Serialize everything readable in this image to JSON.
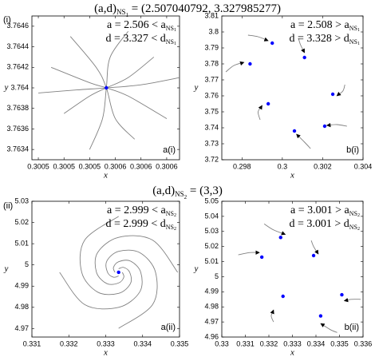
{
  "rows": [
    {
      "label": "(i)",
      "title": {
        "main": "(a,d)",
        "sub": "NS",
        "subsub": "1",
        "rest": " = (2.507040792, 3.327985277)"
      }
    },
    {
      "label": "(ii)",
      "title": {
        "main": "(a,d)",
        "sub": "NS",
        "subsub": "2",
        "rest": " = (3,3)"
      }
    }
  ],
  "chart_data": [
    {
      "type": "line",
      "panel_label": "a(i)",
      "xlabel": "x",
      "ylabel": "y",
      "annotations": [
        {
          "text": "a = 2.506 < a",
          "sub": "NS",
          "subsub": "1"
        },
        {
          "text": "d = 3.327 < d",
          "sub": "NS",
          "subsub": "1"
        }
      ],
      "xlim": [
        0.300495,
        0.30061
      ],
      "ylim": [
        3.7633,
        3.7647
      ],
      "xticks": [
        {
          "value": 0.3005,
          "label": "0.3005"
        },
        {
          "value": 0.30052,
          "label": "0.3005"
        },
        {
          "value": 0.30054,
          "label": "0.3005"
        },
        {
          "value": 0.30056,
          "label": "0.3006"
        },
        {
          "value": 0.30058,
          "label": "0.3006"
        },
        {
          "value": 0.3006,
          "label": "0.3006"
        }
      ],
      "yticks": [
        3.7634,
        3.7636,
        3.7638,
        {
          "value": 3.764,
          "label": "3.764"
        },
        3.7642,
        3.7644,
        3.7646
      ],
      "arrows": false,
      "series": [
        {
          "color": "#808080",
          "x": [
            0.300525,
            0.300545,
            0.300553,
            0.30056,
            0.300575
          ],
          "y": [
            3.7645,
            3.7642,
            3.764,
            3.7637,
            3.7635
          ]
        },
        {
          "color": "#808080",
          "x": [
            0.30051,
            0.30054,
            0.300553,
            0.30057,
            0.3006
          ],
          "y": [
            3.7642,
            3.76405,
            3.764,
            3.76392,
            3.7637
          ]
        },
        {
          "color": "#808080",
          "x": [
            0.30052,
            0.30054,
            0.300553,
            0.30057,
            0.30059
          ],
          "y": [
            3.76375,
            3.76392,
            3.764,
            3.7641,
            3.7643
          ]
        },
        {
          "color": "#808080",
          "x": [
            0.30054,
            0.30055,
            0.300553,
            0.300556,
            0.30057
          ],
          "y": [
            3.7634,
            3.7637,
            3.764,
            3.7643,
            3.76455
          ]
        },
        {
          "color": "#808080",
          "x": [
            0.3005,
            0.30053,
            0.300553,
            0.30058,
            0.30061
          ],
          "y": [
            3.76395,
            3.76398,
            3.764,
            3.76403,
            3.7641
          ]
        }
      ],
      "points": {
        "color": "#0000ff",
        "x": [
          0.300553
        ],
        "y": [
          3.764
        ]
      }
    },
    {
      "type": "line",
      "panel_label": "b(i)",
      "xlabel": "x",
      "ylabel": "y",
      "annotations": [
        {
          "text": "a = 2.508 > a",
          "sub": "NS",
          "subsub": "1"
        },
        {
          "text": "d = 3.328 > d",
          "sub": "NS",
          "subsub": "1"
        }
      ],
      "xlim": [
        0.297,
        0.304
      ],
      "ylim": [
        3.72,
        3.81
      ],
      "xticks": [
        0.298,
        0.3,
        0.302,
        0.304
      ],
      "yticks": [
        3.72,
        3.73,
        3.74,
        3.75,
        3.76,
        3.77,
        3.78,
        3.79,
        3.8,
        3.81
      ],
      "arrows": true,
      "series": [
        {
          "color": "#808080",
          "x": [
            0.2983,
            0.2988,
            0.2993
          ],
          "y": [
            3.798,
            3.797,
            3.7945
          ]
        },
        {
          "color": "#808080",
          "x": [
            0.3008,
            0.3009,
            0.3011
          ],
          "y": [
            3.796,
            3.792,
            3.787
          ]
        },
        {
          "color": "#808080",
          "x": [
            0.2972,
            0.2976,
            0.2981
          ],
          "y": [
            3.775,
            3.779,
            3.781
          ]
        },
        {
          "color": "#808080",
          "x": [
            0.3031,
            0.303,
            0.3027
          ],
          "y": [
            3.767,
            3.763,
            3.76
          ]
        },
        {
          "color": "#808080",
          "x": [
            0.2989,
            0.2988,
            0.299
          ],
          "y": [
            3.745,
            3.75,
            3.754
          ]
        },
        {
          "color": "#808080",
          "x": [
            0.3014,
            0.3011,
            0.3007
          ],
          "y": [
            3.727,
            3.731,
            3.736
          ]
        },
        {
          "color": "#808080",
          "x": [
            0.3032,
            0.3027,
            0.3022
          ],
          "y": [
            3.741,
            3.742,
            3.7415
          ]
        }
      ],
      "points": {
        "color": "#0000ff",
        "x": [
          0.2995,
          0.3011,
          0.2984,
          0.3025,
          0.2993,
          0.3006,
          0.3021
        ],
        "y": [
          3.793,
          3.784,
          3.78,
          3.761,
          3.755,
          3.738,
          3.741
        ]
      }
    },
    {
      "type": "line",
      "panel_label": "a(ii)",
      "xlabel": "x",
      "ylabel": "y",
      "annotations": [
        {
          "text": "a = 2.999 < a",
          "sub": "NS",
          "subsub": "2"
        },
        {
          "text": "d = 2.999 < d",
          "sub": "NS",
          "subsub": "2"
        }
      ],
      "xlim": [
        0.331,
        0.335
      ],
      "ylim": [
        4.966,
        5.03
      ],
      "xticks": [
        0.331,
        0.332,
        0.333,
        0.334,
        0.335
      ],
      "yticks": [
        4.97,
        4.98,
        4.99,
        5,
        5.01,
        5.02,
        5.03
      ],
      "arrows": false,
      "series": [
        {
          "color": "#808080",
          "x": [
            0.33175,
            0.33243,
            0.33335,
            0.33392,
            0.33395,
            0.33367,
            0.33335,
            0.33321,
            0.33325
          ],
          "y": [
            4.9965,
            4.9813,
            4.98,
            4.9872,
            4.9965,
            5.0018,
            5.0015,
            4.9988,
            4.9965
          ]
        },
        {
          "color": "#808080",
          "x": [
            0.33335,
            0.33427,
            0.33435,
            0.33392,
            0.33335,
            0.33303,
            0.33305,
            0.33321,
            0.33335
          ],
          "y": [
            4.9701,
            4.9813,
            4.9965,
            5.0058,
            5.0064,
            5.0018,
            4.9965,
            4.9942,
            4.9948
          ]
        },
        {
          "color": "#808080",
          "x": [
            0.33495,
            0.33427,
            0.33335,
            0.33278,
            0.33275,
            0.33303,
            0.33335,
            0.33349,
            0.33345
          ],
          "y": [
            4.9965,
            5.0117,
            5.013,
            5.0058,
            4.9965,
            4.9912,
            4.9915,
            4.9942,
            4.9965
          ]
        },
        {
          "color": "#808080",
          "x": [
            0.33335,
            0.33243,
            0.33235,
            0.33278,
            0.33335,
            0.33367,
            0.33365,
            0.33349,
            0.33335
          ],
          "y": [
            5.0229,
            5.0117,
            4.9965,
            4.9872,
            4.9866,
            4.9912,
            4.9965,
            4.9988,
            4.9982
          ]
        }
      ],
      "points": {
        "color": "#0000ff",
        "x": [
          0.33335
        ],
        "y": [
          4.9965
        ]
      }
    },
    {
      "type": "line",
      "panel_label": "b(ii)",
      "xlabel": "x",
      "ylabel": "y",
      "annotations": [
        {
          "text": "a = 3.001 > a",
          "sub": "NS",
          "subsub": "2"
        },
        {
          "text": "d = 3.001 > d",
          "sub": "NS",
          "subsub": "2"
        }
      ],
      "xlim": [
        0.33,
        0.336
      ],
      "ylim": [
        4.96,
        5.05
      ],
      "xticks": [
        0.33,
        0.331,
        0.332,
        0.333,
        0.334,
        0.335,
        0.336
      ],
      "yticks": [
        4.96,
        4.97,
        4.98,
        4.99,
        5,
        5.01,
        5.02,
        5.03,
        5.04,
        5.05
      ],
      "arrows": true,
      "series": [
        {
          "color": "#808080",
          "x": [
            0.3307,
            0.3312,
            0.3316
          ],
          "y": [
            5.0145,
            5.016,
            5.016
          ]
        },
        {
          "color": "#808080",
          "x": [
            0.3318,
            0.3322,
            0.3327
          ],
          "y": [
            5.035,
            5.031,
            5.028
          ]
        },
        {
          "color": "#808080",
          "x": [
            0.3338,
            0.3339,
            0.3341
          ],
          "y": [
            5.024,
            5.02,
            5.015
          ]
        },
        {
          "color": "#808080",
          "x": [
            0.3322,
            0.3321,
            0.3322
          ],
          "y": [
            4.97,
            4.974,
            4.978
          ]
        },
        {
          "color": "#808080",
          "x": [
            0.3359,
            0.3355,
            0.3352
          ],
          "y": [
            4.985,
            4.985,
            4.984
          ]
        },
        {
          "color": "#808080",
          "x": [
            0.3349,
            0.3346,
            0.3342
          ],
          "y": [
            4.963,
            4.965,
            4.969
          ]
        }
      ],
      "points": {
        "color": "#0000ff",
        "x": [
          0.3317,
          0.3325,
          0.3339,
          0.3326,
          0.3351,
          0.3342
        ],
        "y": [
          5.013,
          5.026,
          5.014,
          4.987,
          4.988,
          4.974
        ]
      }
    }
  ]
}
